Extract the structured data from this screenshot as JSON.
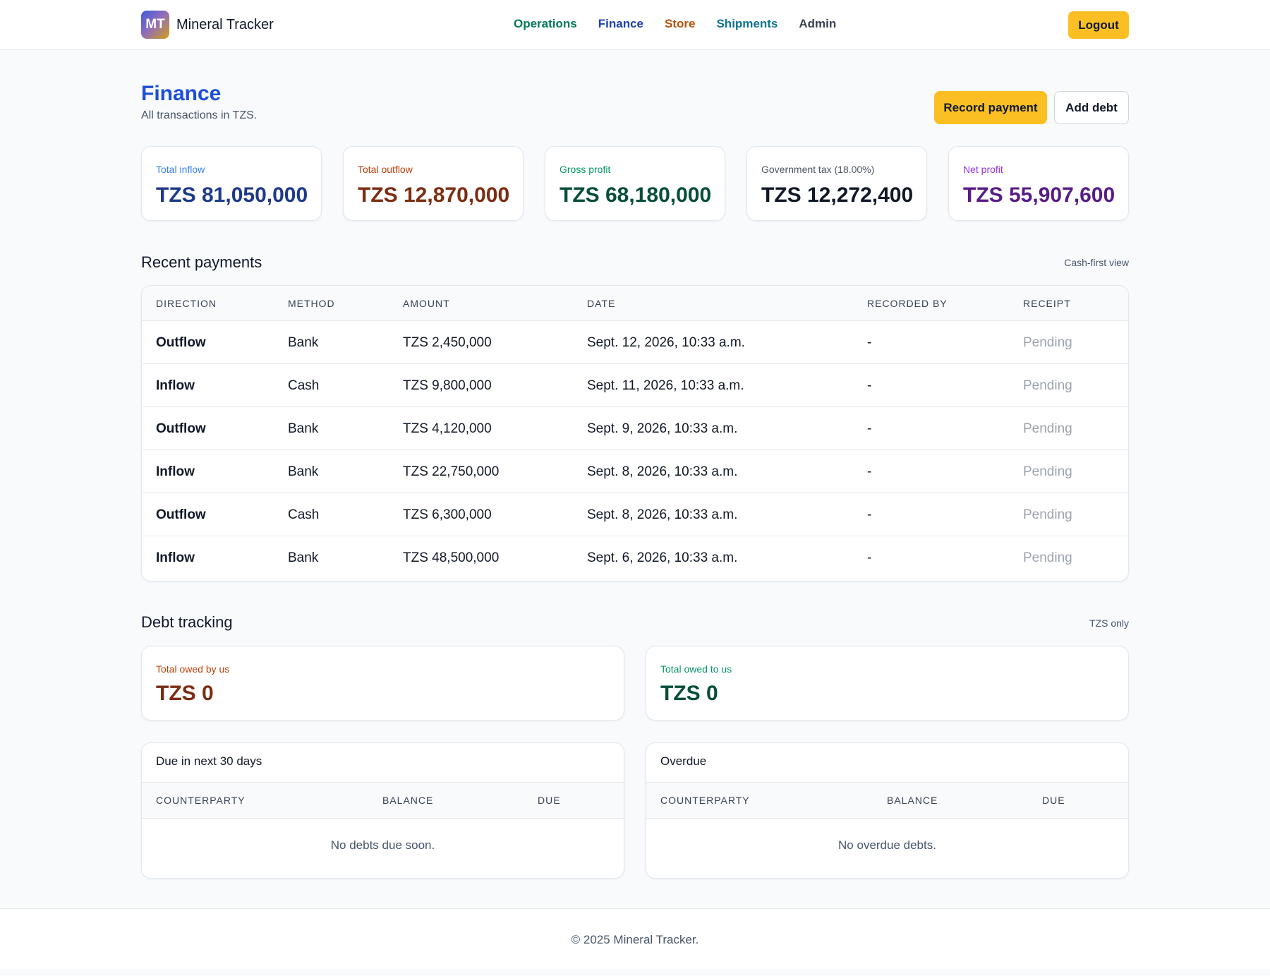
{
  "brand": {
    "logo_text": "MT",
    "name": "Mineral Tracker"
  },
  "nav": {
    "items": [
      {
        "label": "Operations",
        "color": "#047857"
      },
      {
        "label": "Finance",
        "color": "#1e40af"
      },
      {
        "label": "Store",
        "color": "#b45309"
      },
      {
        "label": "Shipments",
        "color": "#0e7490"
      },
      {
        "label": "Admin",
        "color": "#374151"
      }
    ],
    "logout": "Logout"
  },
  "page": {
    "title": "Finance",
    "subtitle": "All transactions in TZS.",
    "record_payment": "Record payment",
    "add_debt": "Add debt"
  },
  "stats": [
    {
      "label": "Total inflow",
      "value": "TZS 81,050,000",
      "label_color": "#3b82f6",
      "value_color": "#1e3a8a"
    },
    {
      "label": "Total outflow",
      "value": "TZS 12,870,000",
      "label_color": "#c2410c",
      "value_color": "#7c2d12"
    },
    {
      "label": "Gross profit",
      "value": "TZS 68,180,000",
      "label_color": "#059669",
      "value_color": "#064e3b"
    },
    {
      "label": "Government tax (18.00%)",
      "value": "TZS 12,272,400",
      "label_color": "#4b5563",
      "value_color": "#111827"
    },
    {
      "label": "Net profit",
      "value": "TZS 55,907,600",
      "label_color": "#9333ea",
      "value_color": "#581c87"
    }
  ],
  "payments": {
    "title": "Recent payments",
    "note": "Cash-first view",
    "headers": [
      "DIRECTION",
      "METHOD",
      "AMOUNT",
      "DATE",
      "RECORDED BY",
      "RECEIPT"
    ],
    "rows": [
      {
        "direction": "Outflow",
        "method": "Bank",
        "amount": "TZS 2,450,000",
        "date": "Sept. 12, 2026, 10:33 a.m.",
        "recorded_by": "-",
        "receipt": "Pending"
      },
      {
        "direction": "Inflow",
        "method": "Cash",
        "amount": "TZS 9,800,000",
        "date": "Sept. 11, 2026, 10:33 a.m.",
        "recorded_by": "-",
        "receipt": "Pending"
      },
      {
        "direction": "Outflow",
        "method": "Bank",
        "amount": "TZS 4,120,000",
        "date": "Sept. 9, 2026, 10:33 a.m.",
        "recorded_by": "-",
        "receipt": "Pending"
      },
      {
        "direction": "Inflow",
        "method": "Bank",
        "amount": "TZS 22,750,000",
        "date": "Sept. 8, 2026, 10:33 a.m.",
        "recorded_by": "-",
        "receipt": "Pending"
      },
      {
        "direction": "Outflow",
        "method": "Cash",
        "amount": "TZS 6,300,000",
        "date": "Sept. 8, 2026, 10:33 a.m.",
        "recorded_by": "-",
        "receipt": "Pending"
      },
      {
        "direction": "Inflow",
        "method": "Bank",
        "amount": "TZS 48,500,000",
        "date": "Sept. 6, 2026, 10:33 a.m.",
        "recorded_by": "-",
        "receipt": "Pending"
      }
    ]
  },
  "debt": {
    "title": "Debt tracking",
    "note": "TZS only",
    "owed_by_us": {
      "label": "Total owed by us",
      "value": "TZS 0",
      "label_color": "#c2410c",
      "value_color": "#7c2d12"
    },
    "owed_to_us": {
      "label": "Total owed to us",
      "value": "TZS 0",
      "label_color": "#059669",
      "value_color": "#064e3b"
    },
    "due_soon": {
      "title": "Due in next 30 days",
      "headers": [
        "COUNTERPARTY",
        "BALANCE",
        "DUE"
      ],
      "empty": "No debts due soon."
    },
    "overdue": {
      "title": "Overdue",
      "headers": [
        "COUNTERPARTY",
        "BALANCE",
        "DUE"
      ],
      "empty": "No overdue debts."
    }
  },
  "footer": {
    "text": "© 2025 Mineral Tracker."
  }
}
